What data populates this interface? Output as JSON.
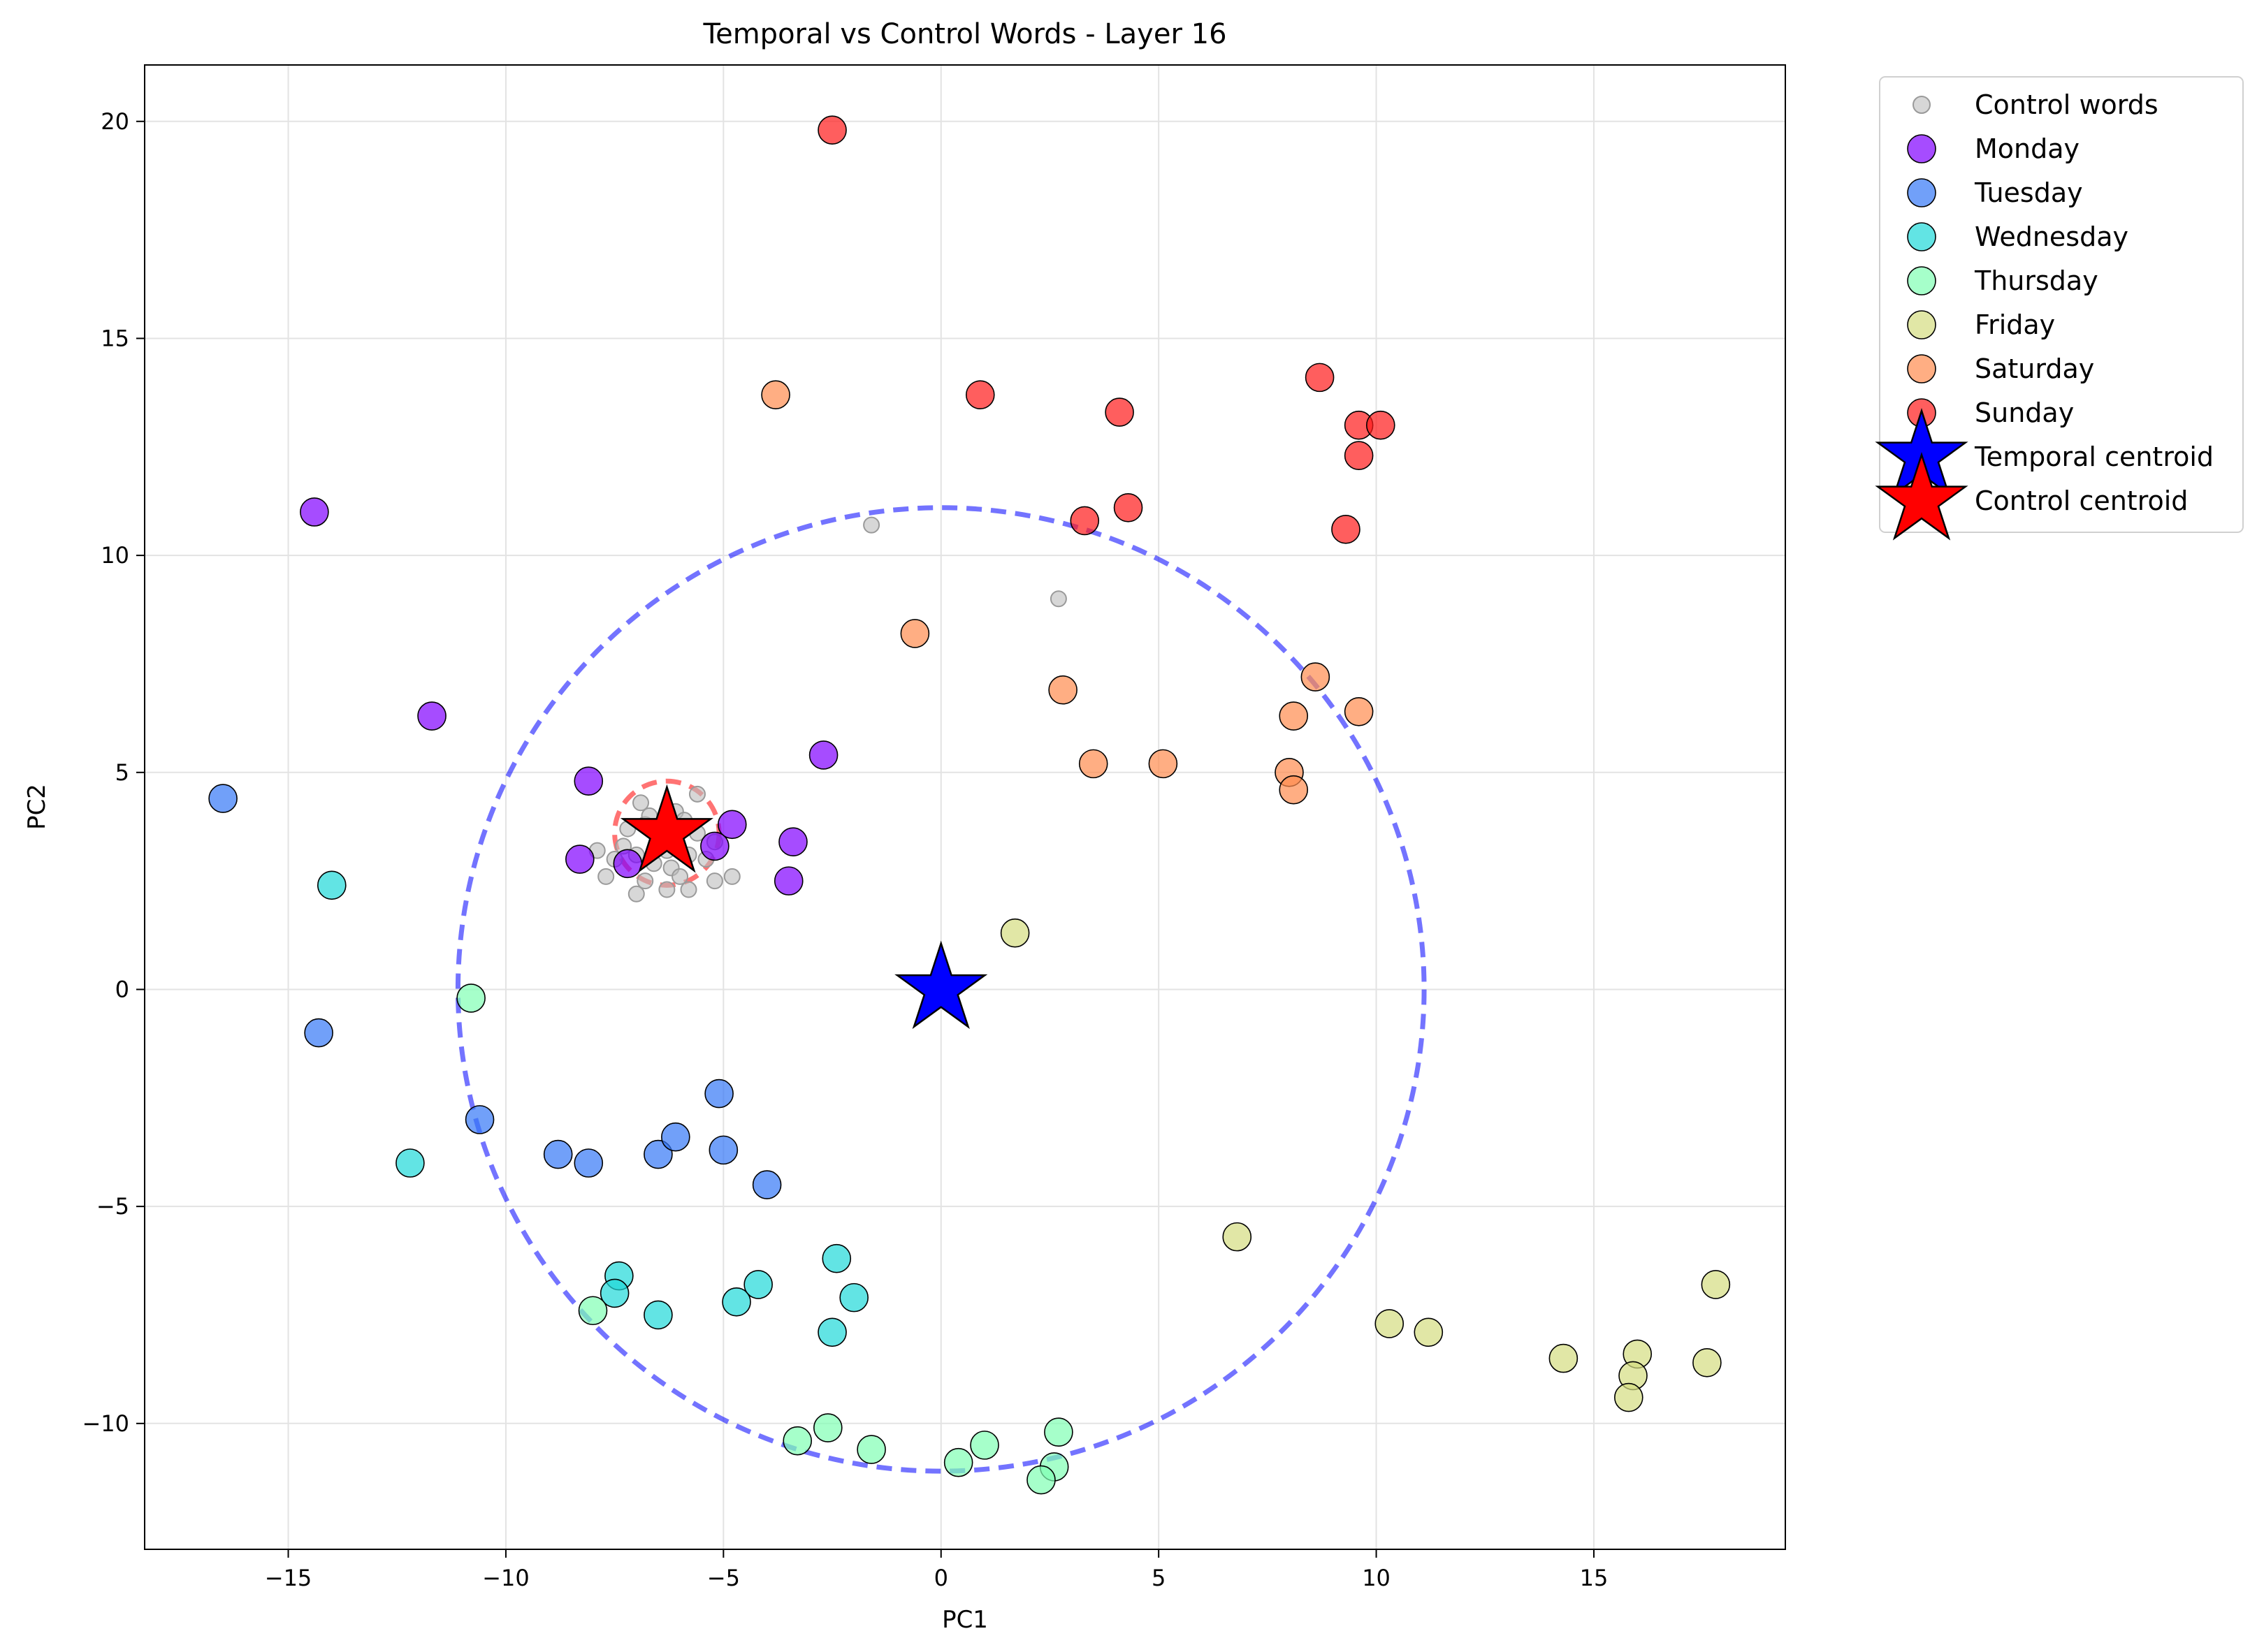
{
  "chart_data": {
    "type": "scatter",
    "title": "Temporal vs Control Words - Layer 16",
    "xlabel": "PC1",
    "ylabel": "PC2",
    "xlim": [
      -18.3,
      19.4
    ],
    "ylim": [
      -12.9,
      21.3
    ],
    "xticks": [
      -15,
      -10,
      -5,
      0,
      5,
      10,
      15
    ],
    "yticks": [
      -10,
      -5,
      0,
      5,
      10,
      15,
      20
    ],
    "xtick_labels": [
      "−15",
      "−10",
      "−5",
      "0",
      "5",
      "10",
      "15"
    ],
    "ytick_labels": [
      "−10",
      "−5",
      "0",
      "5",
      "10",
      "15",
      "20"
    ],
    "grid": true,
    "legend_position": "outside-top-right",
    "series": [
      {
        "name": "Control words",
        "color": "#bdbdbd",
        "marker": "small-circle",
        "points": [
          [
            -1.6,
            10.7
          ],
          [
            2.7,
            9.0
          ],
          [
            -7.5,
            3.0
          ],
          [
            -7.3,
            3.3
          ],
          [
            -7.0,
            3.1
          ],
          [
            -6.8,
            3.8
          ],
          [
            -6.7,
            4.0
          ],
          [
            -6.5,
            3.4
          ],
          [
            -6.3,
            3.2
          ],
          [
            -6.2,
            2.8
          ],
          [
            -6.0,
            2.6
          ],
          [
            -5.8,
            3.1
          ],
          [
            -5.6,
            3.6
          ],
          [
            -5.4,
            3.0
          ],
          [
            -5.2,
            2.5
          ],
          [
            -7.9,
            3.2
          ],
          [
            -7.7,
            2.6
          ],
          [
            -7.0,
            2.2
          ],
          [
            -6.3,
            2.3
          ],
          [
            -5.8,
            2.3
          ],
          [
            -4.8,
            2.6
          ],
          [
            -6.9,
            4.3
          ],
          [
            -5.6,
            4.5
          ],
          [
            -6.6,
            2.9
          ],
          [
            -6.1,
            4.1
          ],
          [
            -5.2,
            3.4
          ],
          [
            -7.2,
            3.7
          ],
          [
            -6.4,
            3.7
          ],
          [
            -6.8,
            2.5
          ],
          [
            -5.9,
            3.9
          ]
        ]
      },
      {
        "name": "Monday",
        "color": "#8000ff",
        "marker": "circle",
        "points": [
          [
            -14.4,
            11.0
          ],
          [
            -11.7,
            6.3
          ],
          [
            -8.1,
            4.8
          ],
          [
            -8.3,
            3.0
          ],
          [
            -7.2,
            2.9
          ],
          [
            -5.2,
            3.3
          ],
          [
            -4.8,
            3.8
          ],
          [
            -3.4,
            3.4
          ],
          [
            -3.5,
            2.5
          ],
          [
            -2.7,
            5.4
          ]
        ]
      },
      {
        "name": "Tuesday",
        "color": "#3478f6",
        "marker": "circle",
        "points": [
          [
            -16.5,
            4.4
          ],
          [
            -14.3,
            -1.0
          ],
          [
            -10.6,
            -3.0
          ],
          [
            -8.8,
            -3.8
          ],
          [
            -8.1,
            -4.0
          ],
          [
            -6.5,
            -3.8
          ],
          [
            -6.1,
            -3.4
          ],
          [
            -5.1,
            -2.4
          ],
          [
            -5.0,
            -3.7
          ],
          [
            -4.0,
            -4.5
          ]
        ]
      },
      {
        "name": "Wednesday",
        "color": "#1fd8d8",
        "marker": "circle",
        "points": [
          [
            -14.0,
            2.4
          ],
          [
            -12.2,
            -4.0
          ],
          [
            -7.4,
            -6.6
          ],
          [
            -7.5,
            -7.0
          ],
          [
            -6.5,
            -7.5
          ],
          [
            -4.7,
            -7.2
          ],
          [
            -4.2,
            -6.8
          ],
          [
            -2.4,
            -6.2
          ],
          [
            -2.0,
            -7.1
          ],
          [
            -2.5,
            -7.9
          ]
        ]
      },
      {
        "name": "Thursday",
        "color": "#80ffb4",
        "marker": "circle",
        "points": [
          [
            -10.8,
            -0.2
          ],
          [
            -8.0,
            -7.4
          ],
          [
            -3.3,
            -10.4
          ],
          [
            -2.6,
            -10.1
          ],
          [
            -1.6,
            -10.6
          ],
          [
            0.4,
            -10.9
          ],
          [
            1.0,
            -10.5
          ],
          [
            2.7,
            -10.2
          ],
          [
            2.6,
            -11.0
          ],
          [
            2.3,
            -11.3
          ]
        ]
      },
      {
        "name": "Friday",
        "color": "#d4dd80",
        "marker": "circle",
        "points": [
          [
            1.7,
            1.3
          ],
          [
            6.8,
            -5.7
          ],
          [
            10.3,
            -7.7
          ],
          [
            11.2,
            -7.9
          ],
          [
            14.3,
            -8.5
          ],
          [
            16.0,
            -8.4
          ],
          [
            15.9,
            -8.9
          ],
          [
            15.8,
            -9.4
          ],
          [
            17.6,
            -8.6
          ],
          [
            17.8,
            -6.8
          ]
        ]
      },
      {
        "name": "Saturday",
        "color": "#ff8c4f",
        "marker": "circle",
        "points": [
          [
            -3.8,
            13.7
          ],
          [
            -0.6,
            8.2
          ],
          [
            2.8,
            6.9
          ],
          [
            3.5,
            5.2
          ],
          [
            5.1,
            5.2
          ],
          [
            8.0,
            5.0
          ],
          [
            8.1,
            4.6
          ],
          [
            8.1,
            6.3
          ],
          [
            8.6,
            7.2
          ],
          [
            9.6,
            6.4
          ]
        ]
      },
      {
        "name": "Sunday",
        "color": "#ff1a1a",
        "marker": "circle",
        "points": [
          [
            -2.5,
            19.8
          ],
          [
            0.9,
            13.7
          ],
          [
            4.1,
            13.3
          ],
          [
            8.7,
            14.1
          ],
          [
            9.6,
            13.0
          ],
          [
            10.1,
            13.0
          ],
          [
            9.6,
            12.3
          ],
          [
            3.3,
            10.8
          ],
          [
            4.3,
            11.1
          ],
          [
            9.3,
            10.6
          ]
        ]
      }
    ],
    "centroids": [
      {
        "name": "Temporal centroid",
        "color": "#0000ff",
        "x": 0.0,
        "y": 0.0,
        "radius": 11.1
      },
      {
        "name": "Control centroid",
        "color": "#ff0000",
        "x": -6.3,
        "y": 3.6,
        "radius": 1.2
      }
    ]
  }
}
